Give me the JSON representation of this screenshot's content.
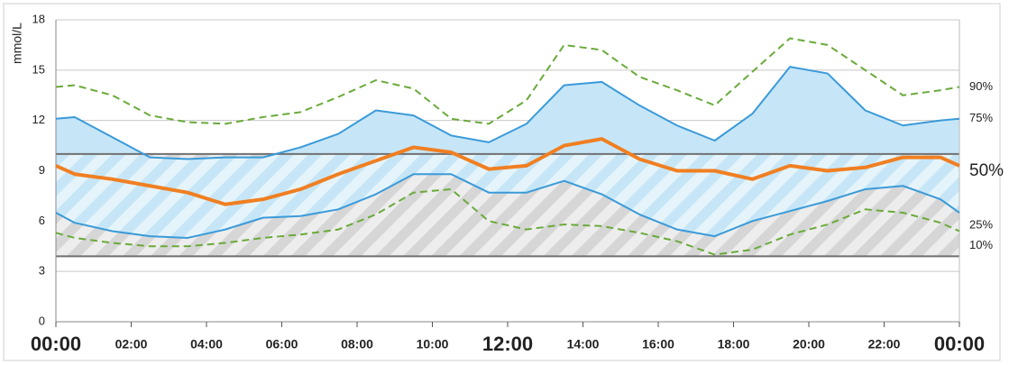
{
  "chart_data": {
    "type": "line",
    "y_label": "mmol/L",
    "x": [
      0,
      0.5,
      1.5,
      2.5,
      3.5,
      4.5,
      5.5,
      6.5,
      7.5,
      8.5,
      9.5,
      10.5,
      11.5,
      12.5,
      13.5,
      14.5,
      15.5,
      16.5,
      17.5,
      18.5,
      19.5,
      20.5,
      21.5,
      22.5,
      23.5,
      24
    ],
    "xlim": [
      0,
      24
    ],
    "xticks": [
      {
        "value": 0,
        "label": "00:00"
      },
      {
        "value": 2,
        "label": "02:00"
      },
      {
        "value": 4,
        "label": "04:00"
      },
      {
        "value": 6,
        "label": "06:00"
      },
      {
        "value": 8,
        "label": "08:00"
      },
      {
        "value": 10,
        "label": "10:00"
      },
      {
        "value": 12,
        "label": "12:00"
      },
      {
        "value": 14,
        "label": "14:00"
      },
      {
        "value": 16,
        "label": "16:00"
      },
      {
        "value": 18,
        "label": "18:00"
      },
      {
        "value": 20,
        "label": "20:00"
      },
      {
        "value": 22,
        "label": "22:00"
      },
      {
        "value": 24,
        "label": "00:00"
      }
    ],
    "ylim": [
      0,
      18
    ],
    "yticks": [
      0,
      3,
      6,
      9,
      12,
      15,
      18
    ],
    "grid": true,
    "target_range": [
      3.9,
      10
    ],
    "iqr_fill": "#c6e6f7",
    "series": [
      {
        "name": "90%",
        "color": "#6aaa3a",
        "style": "dashed",
        "values": [
          14.0,
          14.1,
          13.5,
          12.3,
          11.9,
          11.8,
          12.2,
          12.5,
          13.4,
          14.4,
          13.9,
          12.1,
          11.8,
          13.2,
          16.5,
          16.2,
          14.6,
          13.8,
          12.9,
          14.9,
          16.9,
          16.5,
          15.0,
          13.5,
          13.8,
          14.0
        ]
      },
      {
        "name": "75%",
        "color": "#3a9ad9",
        "style": "solid",
        "values": [
          12.1,
          12.2,
          11.0,
          9.8,
          9.7,
          9.8,
          9.8,
          10.4,
          11.2,
          12.6,
          12.3,
          11.1,
          10.7,
          11.8,
          14.1,
          14.3,
          12.9,
          11.7,
          10.8,
          12.4,
          15.2,
          14.8,
          12.6,
          11.7,
          12.0,
          12.1
        ]
      },
      {
        "name": "50%",
        "color": "#f07f22",
        "style": "bold",
        "values": [
          9.3,
          8.8,
          8.5,
          8.1,
          7.7,
          7.0,
          7.3,
          7.9,
          8.8,
          9.6,
          10.4,
          10.1,
          9.1,
          9.3,
          10.5,
          10.9,
          9.7,
          9.0,
          9.0,
          8.5,
          9.3,
          9.0,
          9.2,
          9.8,
          9.8,
          9.3
        ]
      },
      {
        "name": "25%",
        "color": "#3a9ad9",
        "style": "solid",
        "values": [
          6.5,
          5.9,
          5.4,
          5.1,
          5.0,
          5.5,
          6.2,
          6.3,
          6.7,
          7.6,
          8.8,
          8.8,
          7.7,
          7.7,
          8.4,
          7.6,
          6.4,
          5.5,
          5.1,
          6.0,
          6.6,
          7.2,
          7.9,
          8.1,
          7.3,
          6.5
        ]
      },
      {
        "name": "10%",
        "color": "#6aaa3a",
        "style": "dashed",
        "values": [
          5.3,
          5.0,
          4.7,
          4.5,
          4.5,
          4.7,
          5.0,
          5.2,
          5.5,
          6.4,
          7.7,
          7.9,
          6.0,
          5.5,
          5.8,
          5.7,
          5.3,
          4.8,
          4.0,
          4.3,
          5.2,
          5.8,
          6.7,
          6.5,
          5.9,
          5.4
        ]
      }
    ]
  }
}
